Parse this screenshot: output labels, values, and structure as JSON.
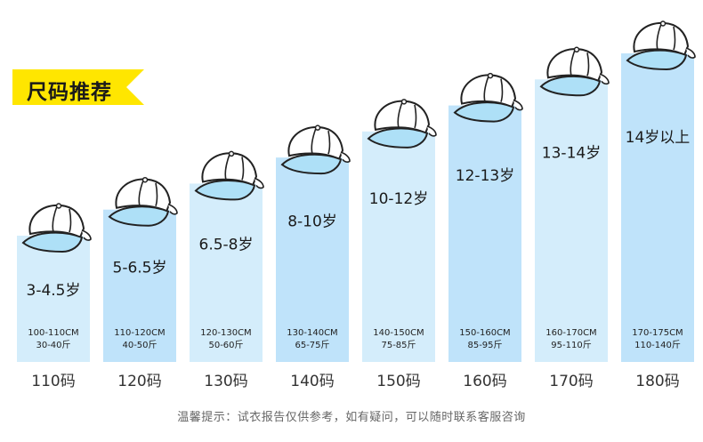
{
  "title": "尺码推荐",
  "footer_note": "温馨提示：试衣报告仅供参考，如有疑问，可以随时联系客服咨询",
  "colors": {
    "tag": "#ffe600",
    "bar_light": "#d4edfb",
    "bar_dark": "#bfe3fa",
    "cap_brim": "#aee0f7"
  },
  "chart_data": {
    "type": "bar",
    "title": "尺码推荐",
    "categories": [
      "110码",
      "120码",
      "130码",
      "140码",
      "150码",
      "160码",
      "170码",
      "180码"
    ],
    "ages": [
      "3-4.5岁",
      "5-6.5岁",
      "6.5-8岁",
      "8-10岁",
      "10-12岁",
      "12-13岁",
      "13-14岁",
      "14岁以上"
    ],
    "heights": [
      "100-110CM",
      "110-120CM",
      "120-130CM",
      "130-140CM",
      "140-150CM",
      "150-160CM",
      "160-170CM",
      "170-175CM"
    ],
    "weights": [
      "30-40斤",
      "40-50斤",
      "50-60斤",
      "65-75斤",
      "75-85斤",
      "85-95斤",
      "95-110斤",
      "110-140斤"
    ],
    "values": [
      1,
      2,
      3,
      4,
      5,
      6,
      7,
      8
    ],
    "ylim": [
      0,
      8
    ],
    "grid": false,
    "legend": "none",
    "icon_on_bar": "cap-icon"
  }
}
